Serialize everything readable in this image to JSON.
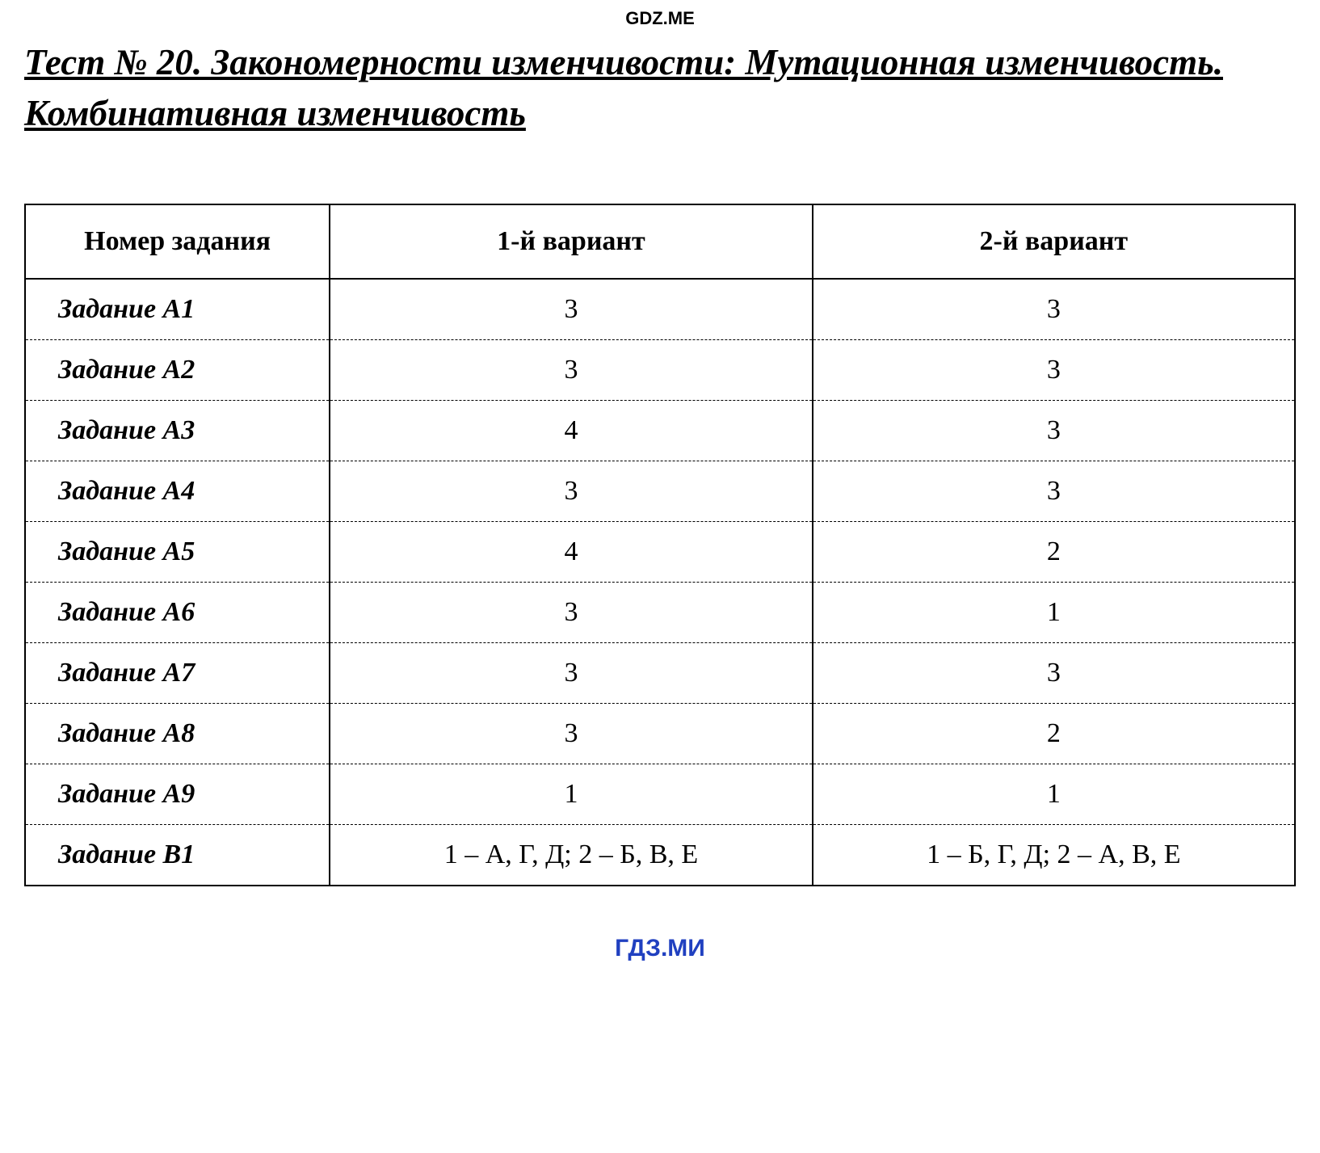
{
  "watermark_top": "GDZ.ME",
  "watermark_bottom": "ГДЗ.МИ",
  "title": "Тест № 20. Закономерности изменчивости: Мутационная изменчивость. Комбинативная изменчивость",
  "table": {
    "type": "table",
    "columns": [
      "Номер задания",
      "1-й вариант",
      "2-й вариант"
    ],
    "column_widths": [
      "24%",
      "38%",
      "38%"
    ],
    "header_fontsize": 34,
    "cell_fontsize": 34,
    "border_color": "#000000",
    "background_color": "#ffffff",
    "rows": [
      {
        "task": "Задание А1",
        "v1": "3",
        "v2": "3"
      },
      {
        "task": "Задание А2",
        "v1": "3",
        "v2": "3"
      },
      {
        "task": "Задание А3",
        "v1": "4",
        "v2": "3"
      },
      {
        "task": "Задание А4",
        "v1": "3",
        "v2": "3"
      },
      {
        "task": "Задание А5",
        "v1": "4",
        "v2": "2"
      },
      {
        "task": "Задание А6",
        "v1": "3",
        "v2": "1"
      },
      {
        "task": "Задание А7",
        "v1": "3",
        "v2": "3"
      },
      {
        "task": "Задание А8",
        "v1": "3",
        "v2": "2"
      },
      {
        "task": "Задание А9",
        "v1": "1",
        "v2": "1"
      },
      {
        "task": "Задание В1",
        "v1": "1 – А, Г, Д; 2 – Б, В, Е",
        "v2": "1 – Б, Г, Д; 2 – А, В, Е"
      }
    ]
  },
  "colors": {
    "text": "#000000",
    "background": "#ffffff",
    "watermark_bottom": "#2040c0"
  }
}
